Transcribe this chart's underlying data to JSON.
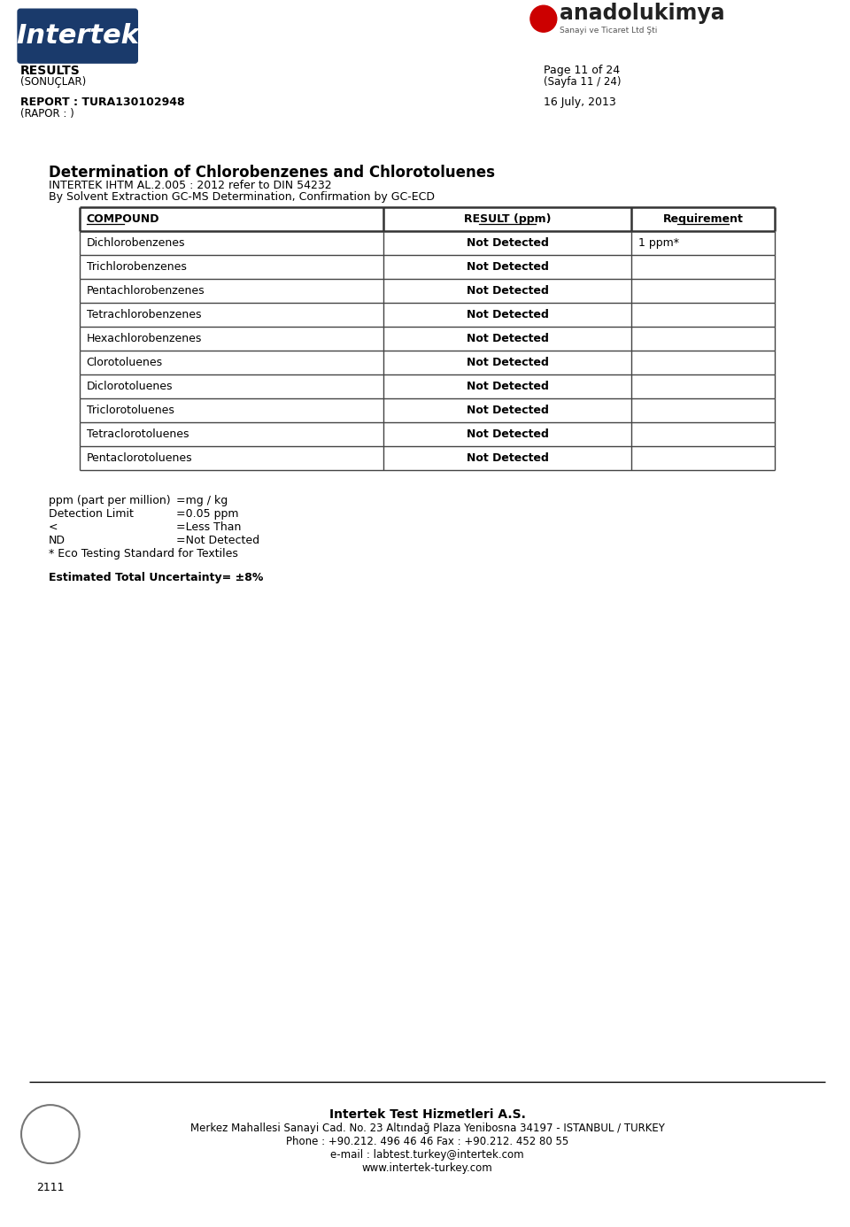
{
  "page_title": "RESULTS",
  "page_title_sub": "(SONUÇLAR)",
  "page_number": "Page 11 of 24",
  "page_number_sub": "(Sayfa 11 / 24)",
  "report_label": "REPORT : TURA130102948",
  "report_sub": "(RAPOR : )",
  "date": "16 July, 2013",
  "section_title": "Determination of Chlorobenzenes and Chlorotoluenes",
  "method_line1": "INTERTEK IHTM AL.2.005 : 2012 refer to DIN 54232",
  "method_line2": "By Solvent Extraction GC-MS Determination, Confirmation by GC-ECD",
  "table_headers": [
    "COMPOUND",
    "RESULT (ppm)",
    "Requirement"
  ],
  "table_rows": [
    [
      "Dichlorobenzenes",
      "Not Detected",
      "1 ppm*"
    ],
    [
      "Trichlorobenzenes",
      "Not Detected",
      ""
    ],
    [
      "Pentachlorobenzenes",
      "Not Detected",
      ""
    ],
    [
      "Tetrachlorobenzenes",
      "Not Detected",
      ""
    ],
    [
      "Hexachlorobenzenes",
      "Not Detected",
      ""
    ],
    [
      "Clorotoluenes",
      "Not Detected",
      ""
    ],
    [
      "Diclorotoluenes",
      "Not Detected",
      ""
    ],
    [
      "Triclorotoluenes",
      "Not Detected",
      ""
    ],
    [
      "Tetraclorotoluenes",
      "Not Detected",
      ""
    ],
    [
      "Pentaclorotoluenes",
      "Not Detected",
      ""
    ]
  ],
  "footnotes": [
    [
      "ppm (part per million)",
      "=mg / kg"
    ],
    [
      "Detection Limit",
      "=0.05 ppm"
    ],
    [
      "<",
      "=Less Than"
    ],
    [
      "ND",
      "=Not Detected"
    ],
    [
      "* Eco Testing Standard for Textiles",
      ""
    ]
  ],
  "uncertainty": "Estimated Total Uncertainty= ±8%",
  "footer_company": "Intertek Test Hizmetleri A.S.",
  "footer_address": "Merkez Mahallesi Sanayi Cad. No. 23 Altındağ Plaza Yenibosna 34197 - ISTANBUL / TURKEY",
  "footer_phone": "Phone : +90.212. 496 46 46 Fax : +90.212. 452 80 55",
  "footer_email": "e-mail : labtest.turkey@intertek.com",
  "footer_web": "www.intertek-turkey.com",
  "ukas_text": "2111",
  "bg_color": "#ffffff",
  "text_color": "#000000",
  "table_line_color": "#555555"
}
